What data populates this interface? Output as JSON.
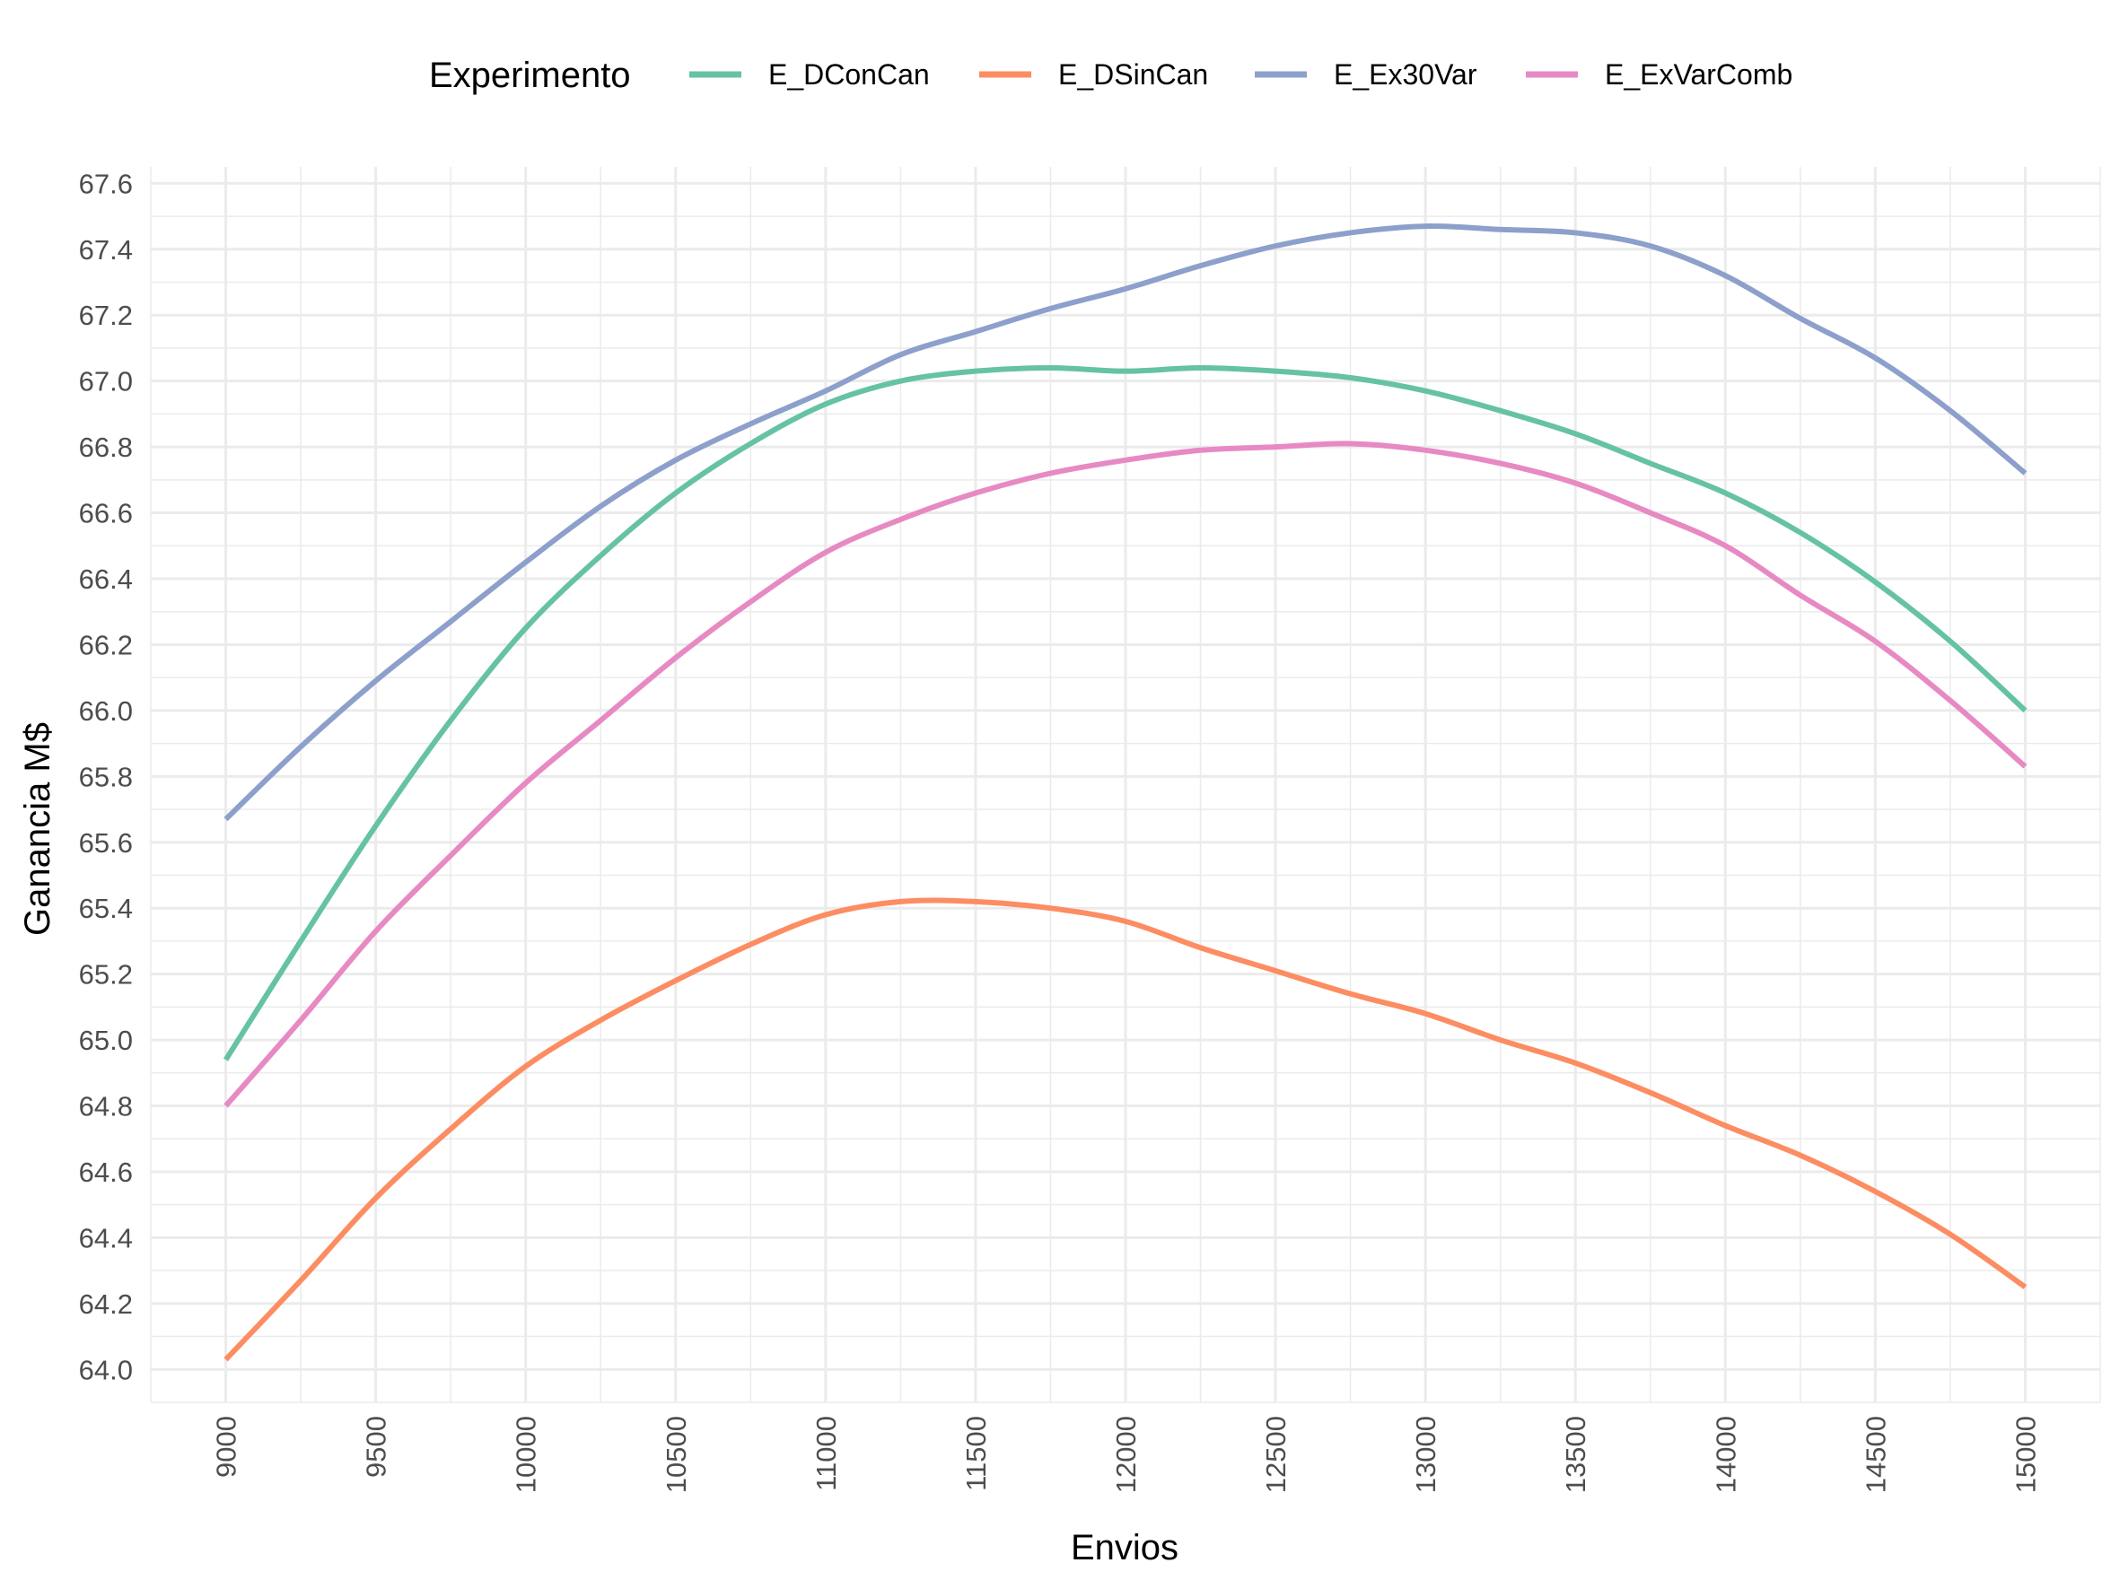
{
  "chart_data": {
    "type": "line",
    "xlabel": "Envios",
    "ylabel": "Ganancia M$",
    "xlim": [
      8750,
      15250
    ],
    "ylim": [
      63.9,
      67.65
    ],
    "x_ticks": [
      "9000",
      "9500",
      "10000",
      "10500",
      "11000",
      "11500",
      "12000",
      "12500",
      "13000",
      "13500",
      "14000",
      "14500",
      "15000"
    ],
    "y_ticks": [
      "64.0",
      "64.2",
      "64.4",
      "64.6",
      "64.8",
      "65.0",
      "65.2",
      "65.4",
      "65.6",
      "65.8",
      "66.0",
      "66.2",
      "66.4",
      "66.6",
      "66.8",
      "67.0",
      "67.2",
      "67.4",
      "67.6"
    ],
    "grid": true,
    "legend": {
      "title": "Experimento",
      "position": "top"
    },
    "x": [
      9000,
      9250,
      9500,
      9750,
      10000,
      10250,
      10500,
      10750,
      11000,
      11250,
      11500,
      11750,
      12000,
      12250,
      12500,
      12750,
      13000,
      13250,
      13500,
      13750,
      14000,
      14250,
      14500,
      14750,
      15000
    ],
    "series": [
      {
        "name": "E_DConCan",
        "color": "#66c2a5",
        "values": [
          64.94,
          65.3,
          65.65,
          65.97,
          66.25,
          66.47,
          66.66,
          66.81,
          66.93,
          67.0,
          67.03,
          67.04,
          67.03,
          67.04,
          67.03,
          67.01,
          66.97,
          66.91,
          66.84,
          66.75,
          66.66,
          66.54,
          66.39,
          66.21,
          66.0
        ]
      },
      {
        "name": "E_DSinCan",
        "color": "#fc8d62",
        "values": [
          64.03,
          64.27,
          64.52,
          64.73,
          64.92,
          65.06,
          65.18,
          65.29,
          65.38,
          65.42,
          65.42,
          65.4,
          65.36,
          65.28,
          65.21,
          65.14,
          65.08,
          65.0,
          64.93,
          64.84,
          64.74,
          64.65,
          64.54,
          64.41,
          64.25
        ]
      },
      {
        "name": "E_Ex30Var",
        "color": "#8da0cb",
        "values": [
          65.67,
          65.89,
          66.09,
          66.27,
          66.45,
          66.62,
          66.76,
          66.87,
          66.97,
          67.08,
          67.15,
          67.22,
          67.28,
          67.35,
          67.41,
          67.45,
          67.47,
          67.46,
          67.45,
          67.41,
          67.32,
          67.19,
          67.07,
          66.91,
          66.72
        ]
      },
      {
        "name": "E_ExVarComb",
        "color": "#e78ac3",
        "values": [
          64.8,
          65.06,
          65.33,
          65.56,
          65.78,
          65.97,
          66.16,
          66.33,
          66.48,
          66.58,
          66.66,
          66.72,
          66.76,
          66.79,
          66.8,
          66.81,
          66.79,
          66.75,
          66.69,
          66.6,
          66.5,
          66.35,
          66.21,
          66.03,
          65.83
        ]
      }
    ]
  }
}
